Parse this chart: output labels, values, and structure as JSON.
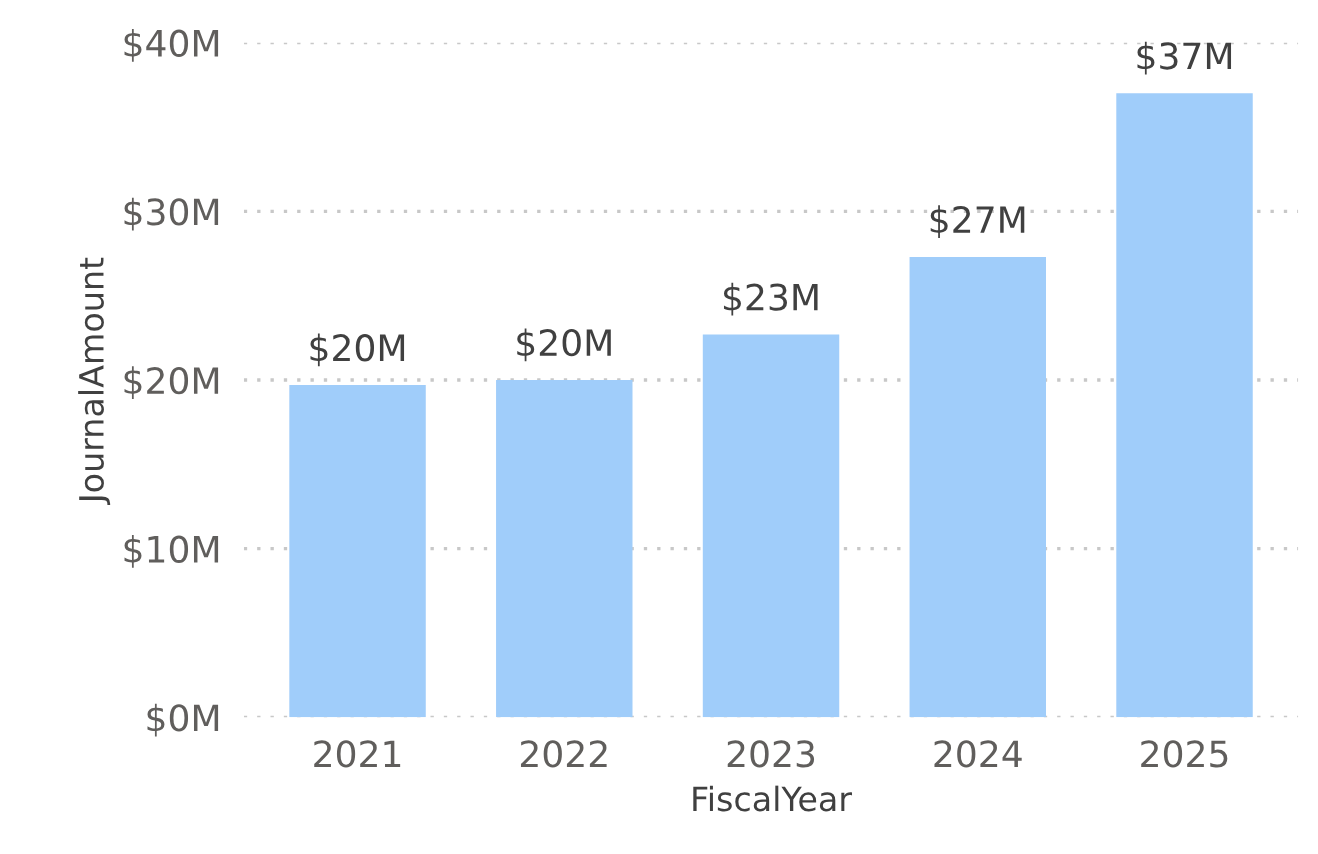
{
  "chart_data": {
    "type": "bar",
    "xlabel": "FiscalYear",
    "ylabel": "JournalAmount",
    "categories": [
      "2021",
      "2022",
      "2023",
      "2024",
      "2025"
    ],
    "values": [
      19.7,
      20,
      22.7,
      27.3,
      37
    ],
    "value_labels": [
      "$20M",
      "$20M",
      "$23M",
      "$27M",
      "$37M"
    ],
    "color": "#a0cdfa",
    "ylim": [
      0,
      40
    ],
    "yticks": [
      {
        "value": 0,
        "label": "$0M"
      },
      {
        "value": 10,
        "label": "$10M"
      },
      {
        "value": 20,
        "label": "$20M"
      },
      {
        "value": 30,
        "label": "$30M"
      },
      {
        "value": 40,
        "label": "$40M"
      }
    ],
    "grid": "y",
    "legend": false
  }
}
